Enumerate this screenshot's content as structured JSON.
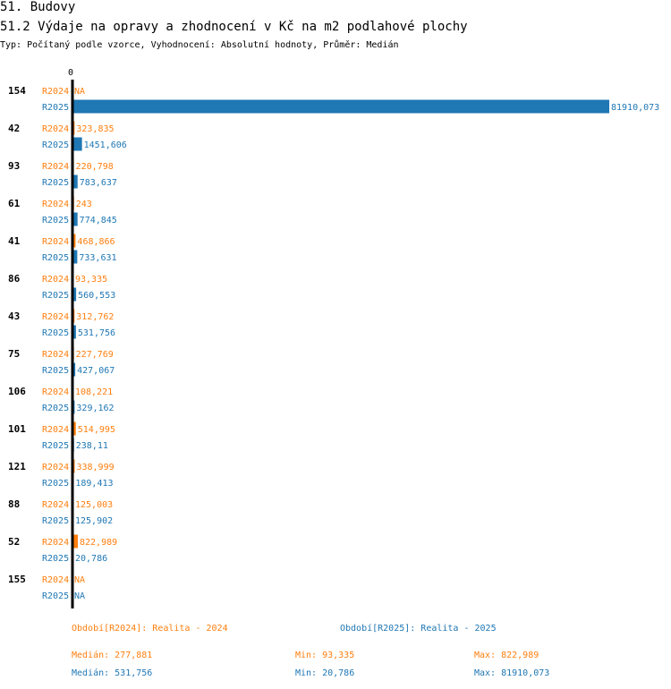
{
  "header": {
    "section": "51. Budovy",
    "title": "51.2 Výdaje na opravy a zhodnocení v Kč na m2 podlahové plochy",
    "subtitle": "Typ: Počítaný podle vzorce, Vyhodnocení: Absolutní hodnoty, Průměr: Medián"
  },
  "colors": {
    "r2024": "#ff7f0e",
    "r2025": "#1f77b4",
    "axis": "#000000"
  },
  "chart_data": {
    "type": "bar",
    "orientation": "horizontal",
    "axis_zero_label": "0",
    "xlim": [
      0,
      81910.073
    ],
    "categories": [
      "154",
      "42",
      "93",
      "61",
      "41",
      "86",
      "43",
      "75",
      "106",
      "101",
      "121",
      "88",
      "52",
      "155"
    ],
    "series": [
      {
        "name": "R2024",
        "color": "#ff7f0e",
        "values": [
          null,
          323.835,
          220.798,
          243,
          468.866,
          93.335,
          312.762,
          227.769,
          108.221,
          514.995,
          338.999,
          125.003,
          822.989,
          null
        ],
        "labels": [
          "NA",
          "323,835",
          "220,798",
          "243",
          "468,866",
          "93,335",
          "312,762",
          "227,769",
          "108,221",
          "514,995",
          "338,999",
          "125,003",
          "822,989",
          "NA"
        ]
      },
      {
        "name": "R2025",
        "color": "#1f77b4",
        "values": [
          81910.073,
          1451.606,
          783.637,
          774.845,
          733.631,
          560.553,
          531.756,
          427.067,
          329.162,
          238.11,
          189.413,
          125.902,
          20.786,
          null
        ],
        "labels": [
          "81910,073",
          "1451,606",
          "783,637",
          "774,845",
          "733,631",
          "560,553",
          "531,756",
          "427,067",
          "329,162",
          "238,11",
          "189,413",
          "125,902",
          "20,786",
          "NA"
        ]
      }
    ]
  },
  "legend": {
    "r2024": {
      "period": "Období[R2024]: Realita - 2024",
      "median": "Medián: 277,881",
      "min": "Min: 93,335",
      "max": "Max: 822,989"
    },
    "r2025": {
      "period": "Období[R2025]: Realita - 2025",
      "median": "Medián: 531,756",
      "min": "Min: 20,786",
      "max": "Max: 81910,073"
    }
  }
}
